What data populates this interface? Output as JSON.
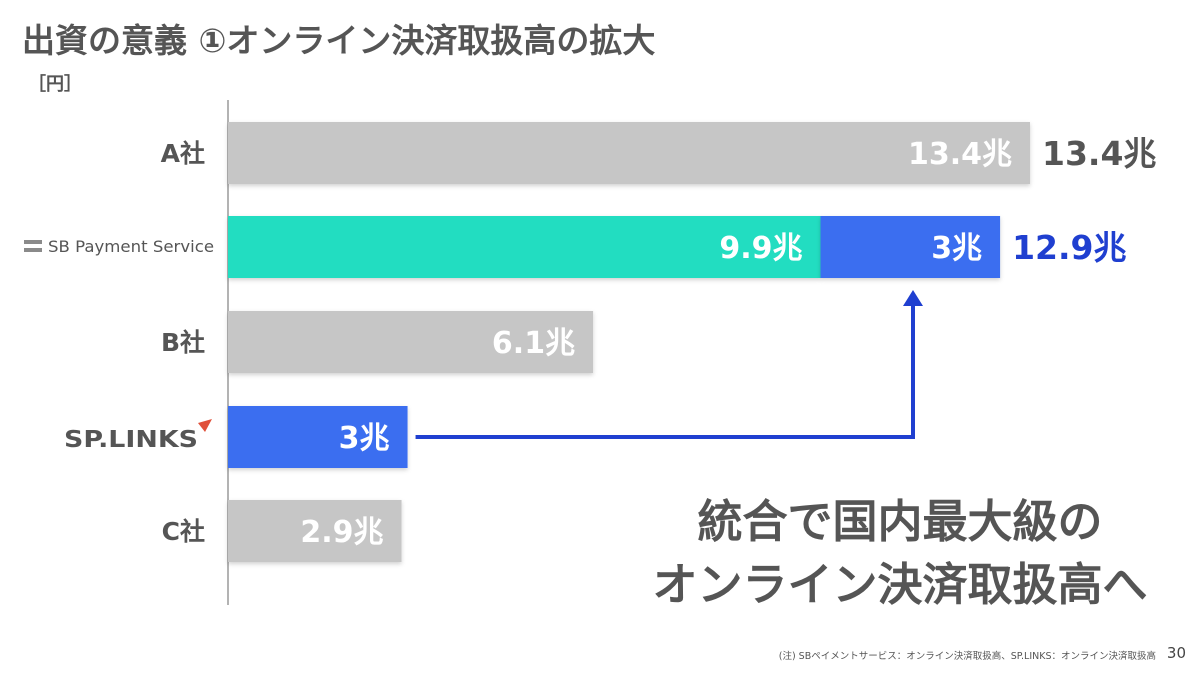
{
  "title": "出資の意義 ①オンライン決済取扱高の拡大",
  "unit": "［円］",
  "chart_data": {
    "type": "bar",
    "orientation": "horizontal",
    "stacked": true,
    "value_unit": "兆",
    "categories": [
      "A社",
      "SB Payment Service",
      "B社",
      "SP.LINKS",
      "C社"
    ],
    "bars": [
      {
        "category": "A社",
        "segments": [
          {
            "value": 13.4,
            "label": "13.4兆",
            "color": "#c6c6c6"
          }
        ],
        "total_label": "13.4兆",
        "total_color": "#555555"
      },
      {
        "category": "SB Payment Service",
        "segments": [
          {
            "value": 9.9,
            "label": "9.9兆",
            "color": "#22ddc1"
          },
          {
            "value": 3,
            "label": "3兆",
            "color": "#3b6ef0"
          }
        ],
        "total_label": "12.9兆",
        "total_color": "#1f3fd0"
      },
      {
        "category": "B社",
        "segments": [
          {
            "value": 6.1,
            "label": "6.1兆",
            "color": "#c6c6c6"
          }
        ],
        "total_label": "",
        "total_color": "#555555"
      },
      {
        "category": "SP.LINKS",
        "segments": [
          {
            "value": 3,
            "label": "3兆",
            "color": "#3b6ef0"
          }
        ],
        "total_label": "",
        "total_color": "#555555"
      },
      {
        "category": "C社",
        "segments": [
          {
            "value": 2.9,
            "label": "2.9兆",
            "color": "#c6c6c6"
          }
        ],
        "total_label": "",
        "total_color": "#555555"
      }
    ],
    "xlim": [
      0,
      13.4
    ],
    "grid": false,
    "legend": "none",
    "annotations": [
      "統合で国内最大級の",
      "オンライン決済取扱高へ"
    ],
    "arrow": {
      "from": "SP.LINKS",
      "to": "SB Payment Service",
      "color": "#1f3fd0"
    }
  },
  "logos": {
    "sbps": "SB Payment Service",
    "splinks": "SP.LINKS"
  },
  "footnote": "(注) SBペイメントサービス：オンライン決済取扱高、SP.LINKS：オンライン決済取扱高",
  "page_number": "30",
  "colors": {
    "text": "#555555",
    "accent_blue": "#1f3fd0",
    "gray_bar": "#c6c6c6",
    "teal_bar": "#22ddc1",
    "blue_bar": "#3b6ef0"
  }
}
